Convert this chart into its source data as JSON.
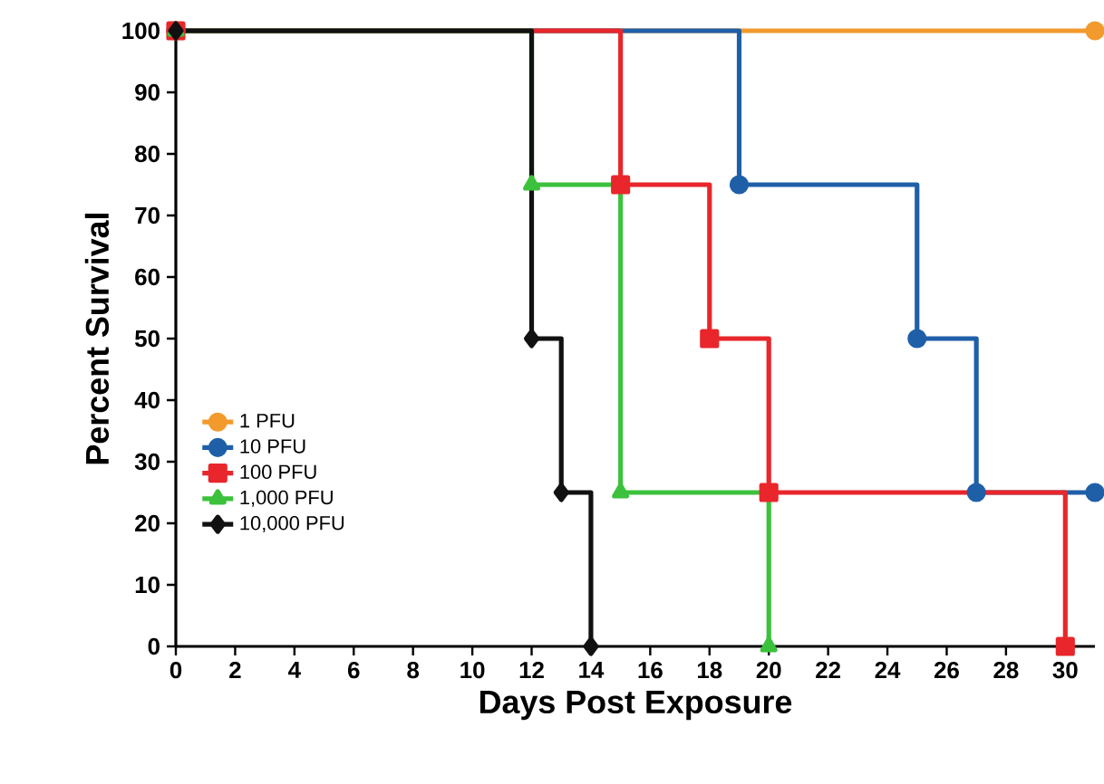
{
  "chart_data": {
    "type": "step",
    "xlabel": "Days Post Exposure",
    "ylabel": "Percent Survival",
    "xlim": [
      0,
      31
    ],
    "ylim": [
      0,
      100
    ],
    "xticks": [
      0,
      2,
      4,
      6,
      8,
      10,
      12,
      14,
      16,
      18,
      20,
      22,
      24,
      26,
      28,
      30
    ],
    "yticks": [
      0,
      10,
      20,
      30,
      40,
      50,
      60,
      70,
      80,
      90,
      100
    ],
    "legend": "left",
    "series": [
      {
        "name": "1 PFU",
        "color": "#f39a2e",
        "marker": "circle",
        "x": [
          0,
          31
        ],
        "values": [
          100,
          100
        ]
      },
      {
        "name": "10 PFU",
        "color": "#1f5fa8",
        "marker": "circle",
        "x": [
          0,
          19,
          25,
          27,
          31
        ],
        "values": [
          100,
          75,
          50,
          25,
          25
        ]
      },
      {
        "name": "100 PFU",
        "color": "#e8262b",
        "marker": "square",
        "x": [
          0,
          15,
          18,
          20,
          30
        ],
        "values": [
          100,
          75,
          50,
          25,
          0
        ]
      },
      {
        "name": "1,000 PFU",
        "color": "#3cc13c",
        "marker": "triangle",
        "x": [
          0,
          12,
          15,
          20
        ],
        "values": [
          100,
          75,
          25,
          0
        ]
      },
      {
        "name": "10,000 PFU",
        "color": "#111111",
        "marker": "diamond",
        "x": [
          0,
          12,
          13,
          14
        ],
        "values": [
          100,
          50,
          25,
          0
        ]
      }
    ]
  }
}
